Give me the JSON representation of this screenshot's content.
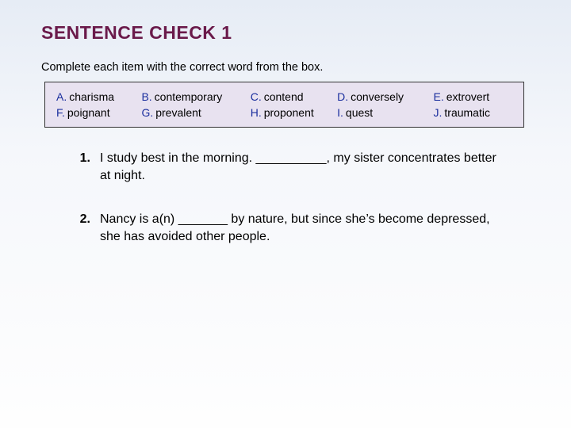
{
  "colors": {
    "title": "#6a1a4a",
    "letter": "#1b2f9e",
    "text": "#000000",
    "box_bg": "#e8e2f0",
    "box_border": "#333333",
    "bg_gradient_top": "#e6ecf5",
    "bg_gradient_bottom": "#fefefe"
  },
  "typography": {
    "title_fontsize": 23,
    "instruction_fontsize": 14.5,
    "box_fontsize": 14,
    "question_fontsize": 16,
    "font_family": "Verdana"
  },
  "title": "SENTENCE CHECK 1",
  "instruction": "Complete each item with the correct word from the box.",
  "wordbox": {
    "row1": [
      {
        "letter": "A.",
        "word": "charisma"
      },
      {
        "letter": "B.",
        "word": "contemporary"
      },
      {
        "letter": "C.",
        "word": "contend"
      },
      {
        "letter": "D.",
        "word": "conversely"
      },
      {
        "letter": "E.",
        "word": "extrovert"
      }
    ],
    "row2": [
      {
        "letter": "F.",
        "word": "poignant"
      },
      {
        "letter": "G.",
        "word": "prevalent"
      },
      {
        "letter": "H.",
        "word": "proponent"
      },
      {
        "letter": "I.",
        "word": "quest"
      },
      {
        "letter": "J.",
        "word": "traumatic"
      }
    ]
  },
  "questions": [
    {
      "num": "1.",
      "text": "I study best in the morning. __________, my sister concentrates better at night."
    },
    {
      "num": "2.",
      "text": "Nancy is a(n) _______ by nature, but since she’s become depressed, she has avoided other people."
    }
  ]
}
